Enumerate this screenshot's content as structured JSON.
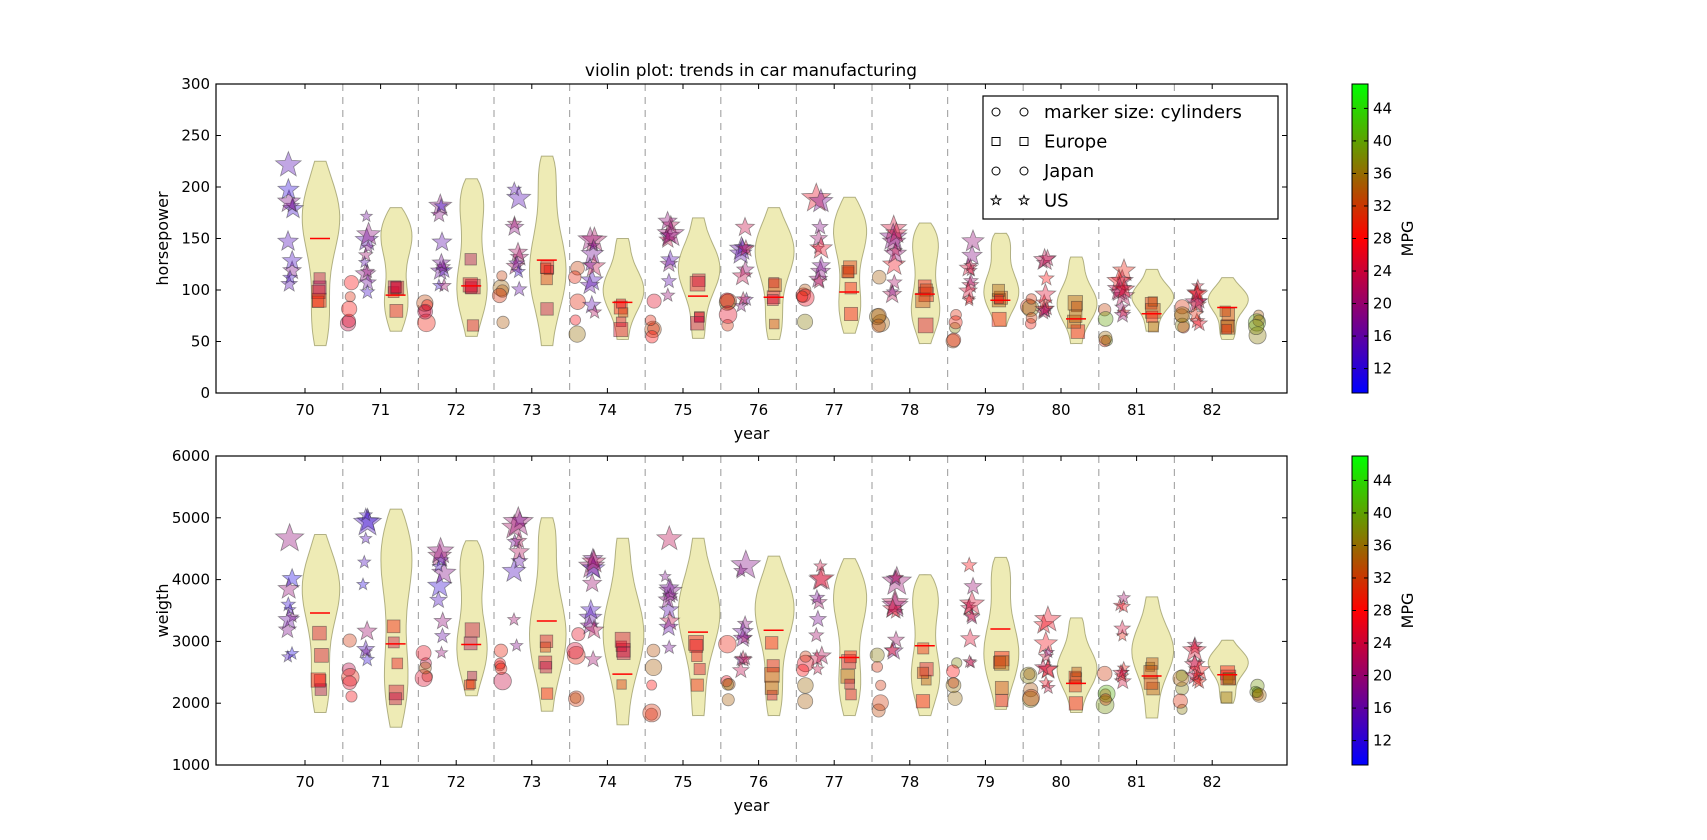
{
  "chart_data": {
    "type": "violin",
    "title": "violin plot: trends in car manufacturing",
    "colorbar": {
      "label": "MPG",
      "ticks": [
        12,
        16,
        20,
        24,
        28,
        32,
        36,
        40,
        44
      ],
      "range": [
        9,
        47
      ],
      "colors": [
        "#0000ff",
        "#ff0000",
        "#00ff00"
      ]
    },
    "legend": {
      "placement": "top-right",
      "entries": [
        {
          "marker": "circle",
          "label": "marker size: cylinders"
        },
        {
          "marker": "square",
          "label": "Europe"
        },
        {
          "marker": "circle",
          "label": "Japan"
        },
        {
          "marker": "star",
          "label": "US"
        }
      ]
    },
    "years": [
      "70",
      "71",
      "72",
      "73",
      "74",
      "75",
      "76",
      "77",
      "78",
      "79",
      "80",
      "81",
      "82"
    ],
    "panels": [
      {
        "xlabel": "year",
        "ylabel": "horsepower",
        "ylim": [
          0,
          300
        ],
        "yticks": [
          0,
          50,
          100,
          150,
          200,
          250,
          300
        ],
        "violins": [
          {
            "year": "70",
            "min": 46,
            "max": 225,
            "mean": 150
          },
          {
            "year": "71",
            "min": 60,
            "max": 180,
            "mean": 95
          },
          {
            "year": "72",
            "min": 55,
            "max": 208,
            "mean": 104
          },
          {
            "year": "73",
            "min": 46,
            "max": 230,
            "mean": 129
          },
          {
            "year": "74",
            "min": 52,
            "max": 150,
            "mean": 88
          },
          {
            "year": "75",
            "min": 53,
            "max": 170,
            "mean": 94
          },
          {
            "year": "76",
            "min": 52,
            "max": 180,
            "mean": 93
          },
          {
            "year": "77",
            "min": 58,
            "max": 190,
            "mean": 98
          },
          {
            "year": "78",
            "min": 48,
            "max": 165,
            "mean": 96
          },
          {
            "year": "79",
            "min": 65,
            "max": 155,
            "mean": 90
          },
          {
            "year": "80",
            "min": 48,
            "max": 132,
            "mean": 72
          },
          {
            "year": "81",
            "min": 60,
            "max": 120,
            "mean": 77
          },
          {
            "year": "82",
            "min": 52,
            "max": 112,
            "mean": 83
          }
        ]
      },
      {
        "xlabel": "year",
        "ylabel": "weigth",
        "ylim": [
          1000,
          6000
        ],
        "yticks": [
          1000,
          2000,
          3000,
          4000,
          5000,
          6000
        ],
        "violins": [
          {
            "year": "70",
            "min": 1850,
            "max": 4730,
            "mean": 3460
          },
          {
            "year": "71",
            "min": 1610,
            "max": 5140,
            "mean": 2960
          },
          {
            "year": "72",
            "min": 2120,
            "max": 4630,
            "mean": 2950
          },
          {
            "year": "73",
            "min": 1870,
            "max": 5000,
            "mean": 3330
          },
          {
            "year": "74",
            "min": 1650,
            "max": 4670,
            "mean": 2470
          },
          {
            "year": "75",
            "min": 1800,
            "max": 4670,
            "mean": 3150
          },
          {
            "year": "76",
            "min": 1800,
            "max": 4380,
            "mean": 3180
          },
          {
            "year": "77",
            "min": 1800,
            "max": 4340,
            "mean": 2740
          },
          {
            "year": "78",
            "min": 1800,
            "max": 4080,
            "mean": 2930
          },
          {
            "year": "79",
            "min": 1900,
            "max": 4360,
            "mean": 3200
          },
          {
            "year": "80",
            "min": 1850,
            "max": 3380,
            "mean": 2320
          },
          {
            "year": "81",
            "min": 1760,
            "max": 3720,
            "mean": 2440
          },
          {
            "year": "82",
            "min": 2000,
            "max": 3020,
            "mean": 2460
          }
        ]
      }
    ]
  }
}
